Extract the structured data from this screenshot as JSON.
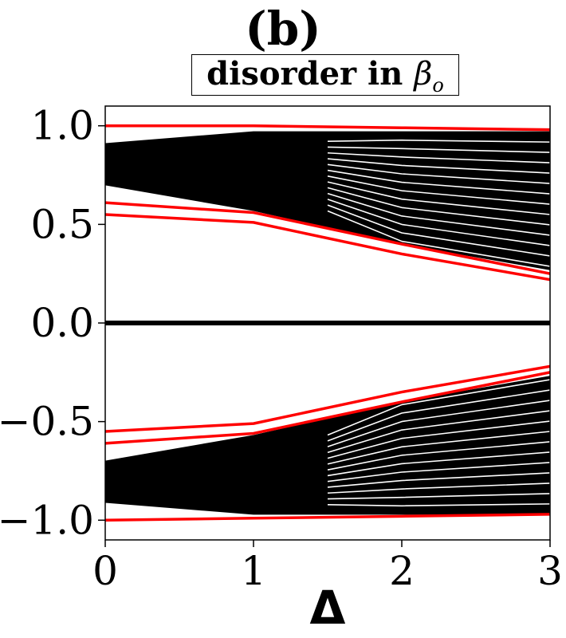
{
  "panel_label": "(b)",
  "title": {
    "prefix": "disorder in ",
    "symbol": "β",
    "subscript": "o"
  },
  "chart_data": {
    "type": "line",
    "xlabel": "Δ",
    "ylabel": "",
    "x": [
      0,
      1,
      2,
      3
    ],
    "xlim": [
      0,
      3
    ],
    "ylim": [
      -1.1,
      1.1
    ],
    "xticks": [
      "0",
      "1",
      "2",
      "3"
    ],
    "yticks": [
      {
        "value": 1.0,
        "label": "1.0"
      },
      {
        "value": 0.5,
        "label": "0.5"
      },
      {
        "value": 0.0,
        "label": "0.0"
      },
      {
        "value": -0.5,
        "label": "−0.5"
      },
      {
        "value": -1.0,
        "label": "−1.0"
      }
    ],
    "grid": false,
    "band": {
      "color": "#000000",
      "upper_top": [
        0.91,
        0.97,
        0.97,
        0.97
      ],
      "upper_bottom": [
        0.7,
        0.57,
        0.4,
        0.27
      ],
      "count": 40
    },
    "zero_line": {
      "y": 0.0,
      "color": "#000000"
    },
    "series": [
      {
        "color": "#ff0000",
        "values": [
          1.0,
          1.0,
          0.99,
          0.98
        ]
      },
      {
        "color": "#ff0000",
        "values": [
          0.61,
          0.56,
          0.4,
          0.25
        ]
      },
      {
        "color": "#ff0000",
        "values": [
          0.55,
          0.51,
          0.35,
          0.22
        ]
      },
      {
        "color": "#ff0000",
        "values": [
          -0.55,
          -0.51,
          -0.35,
          -0.22
        ]
      },
      {
        "color": "#ff0000",
        "values": [
          -0.61,
          -0.56,
          -0.4,
          -0.25
        ]
      },
      {
        "color": "#ff0000",
        "values": [
          -1.0,
          -0.99,
          -0.98,
          -0.97
        ]
      }
    ]
  }
}
